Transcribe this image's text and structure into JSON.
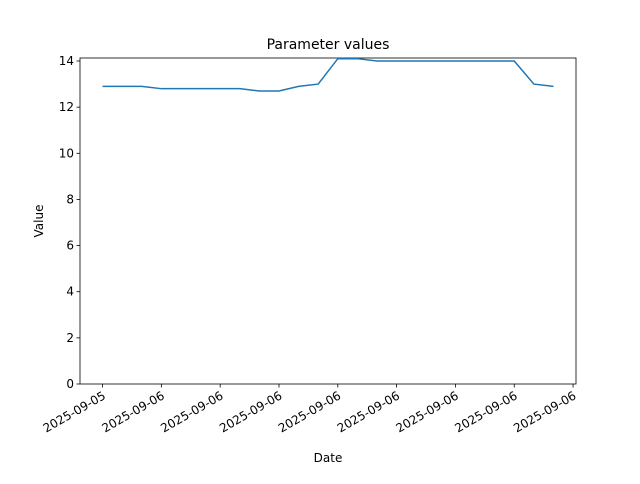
{
  "chart_data": {
    "type": "line",
    "title": "Parameter values",
    "x_label": "Date",
    "y_label": "Value",
    "x": [
      0,
      1,
      2,
      3,
      4,
      5,
      6,
      7,
      8,
      9,
      10,
      11,
      12,
      13,
      14,
      15,
      16,
      17,
      18,
      19,
      20,
      21,
      22,
      23
    ],
    "series": [
      {
        "color": "#1f77b4",
        "values": [
          12.9,
          12.9,
          12.9,
          12.8,
          12.8,
          12.8,
          12.8,
          12.8,
          12.7,
          12.7,
          12.9,
          13.0,
          14.1,
          14.1,
          14.0,
          14.0,
          14.0,
          14.0,
          14.0,
          14.0,
          14.0,
          14.0,
          13.0,
          12.9
        ]
      }
    ],
    "xlim": [
      -1.15,
      24.15
    ],
    "xticks": [
      {
        "value": 0,
        "label": "2025-09-05"
      },
      {
        "value": 3,
        "label": "2025-09-06"
      },
      {
        "value": 6,
        "label": "2025-09-06"
      },
      {
        "value": 9,
        "label": "2025-09-06"
      },
      {
        "value": 12,
        "label": "2025-09-06"
      },
      {
        "value": 15,
        "label": "2025-09-06"
      },
      {
        "value": 18,
        "label": "2025-09-06"
      },
      {
        "value": 21,
        "label": "2025-09-06"
      },
      {
        "value": 24,
        "label": "2025-09-06"
      }
    ],
    "ylim": [
      0,
      14.13
    ],
    "yticks": [
      0,
      2,
      4,
      6,
      8,
      10,
      12,
      14
    ],
    "grid": false
  }
}
